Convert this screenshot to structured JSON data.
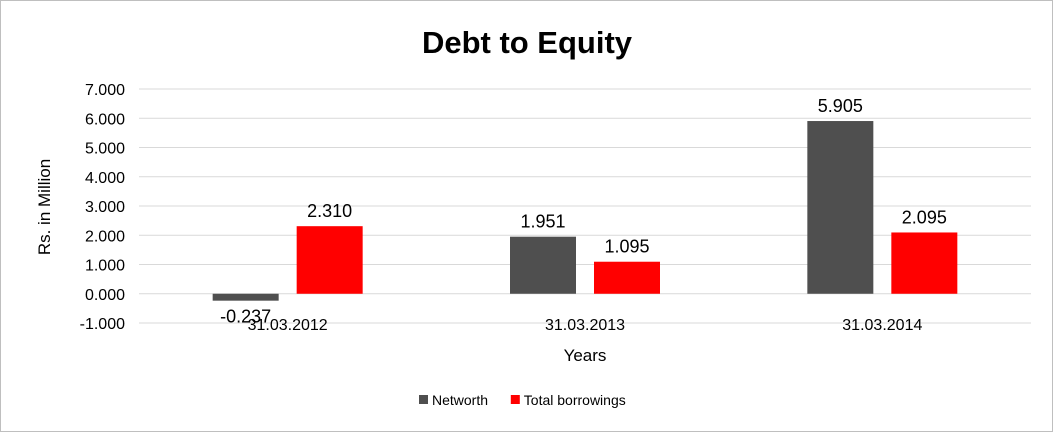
{
  "chart_data": {
    "type": "bar",
    "title": "Debt to Equity",
    "xlabel": "Years",
    "ylabel": "Rs. in Million",
    "categories": [
      "31.03.2012",
      "31.03.2013",
      "31.03.2014"
    ],
    "series": [
      {
        "name": "Networth",
        "values": [
          -0.237,
          1.951,
          5.905
        ],
        "labels": [
          "-0.237",
          "1.951",
          "5.905"
        ],
        "color": "#4f4f4f"
      },
      {
        "name": "Total borrowings",
        "values": [
          2.31,
          1.095,
          2.095
        ],
        "labels": [
          "2.310",
          "1.095",
          "2.095"
        ],
        "color": "#ff0000"
      }
    ],
    "ylim": [
      -1,
      7
    ],
    "yticks": [
      -1,
      0,
      1,
      2,
      3,
      4,
      5,
      6,
      7
    ],
    "ytick_labels": [
      "-1.000",
      "0.000",
      "1.000",
      "2.000",
      "3.000",
      "4.000",
      "5.000",
      "6.000",
      "7.000"
    ],
    "grid": true,
    "legend_position": "bottom"
  }
}
